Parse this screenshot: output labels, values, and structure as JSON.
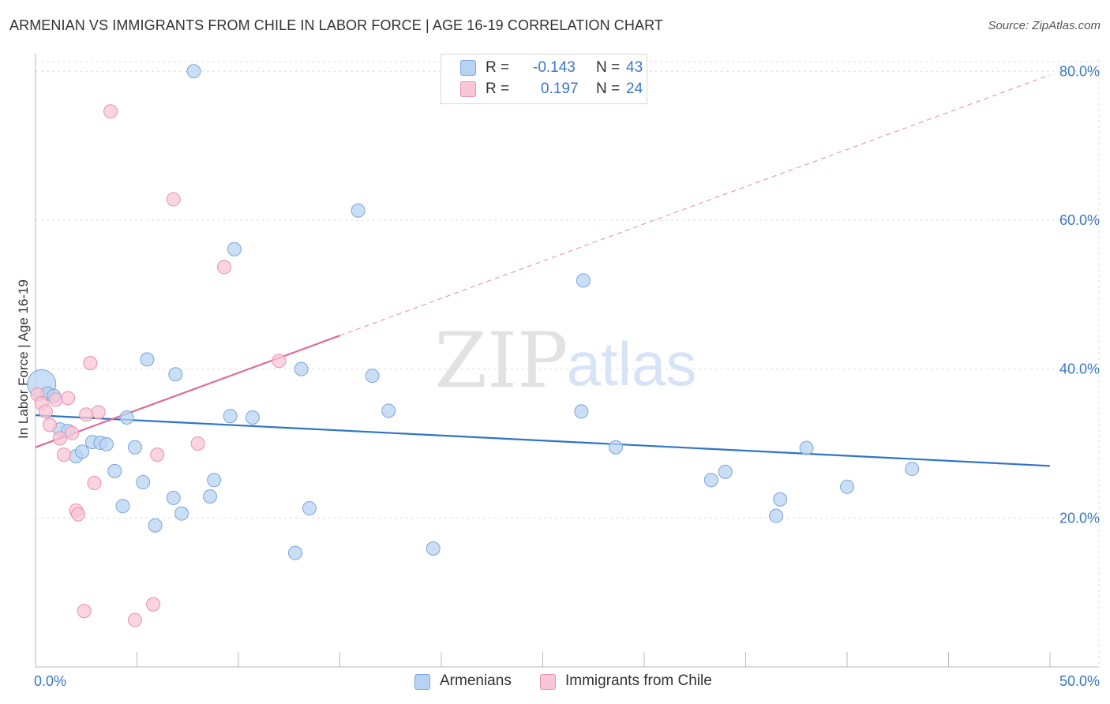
{
  "title": "ARMENIAN VS IMMIGRANTS FROM CHILE IN LABOR FORCE | AGE 16-19 CORRELATION CHART",
  "source": "Source: ZipAtlas.com",
  "watermark": {
    "zip": "ZIP",
    "atlas": "atlas"
  },
  "colors": {
    "blue_fill": "#b8d3f2",
    "blue_stroke": "#7aa6dc",
    "blue_line": "#2f74c8",
    "pink_fill": "#f8c6d4",
    "pink_stroke": "#e992ad",
    "pink_line": "#e0689a",
    "value_text": "#3b78c4",
    "grid": "#dddddd"
  },
  "legend_top": [
    {
      "swatch": "blue",
      "r_label": "R =",
      "r_value": "-0.143",
      "n_label": "N =",
      "n_value": "43"
    },
    {
      "swatch": "pink",
      "r_label": "R =",
      "r_value": "0.197",
      "n_label": "N =",
      "n_value": "24"
    }
  ],
  "legend_bottom": [
    {
      "swatch": "blue",
      "label": "Armenians"
    },
    {
      "swatch": "pink",
      "label": "Immigrants from Chile"
    }
  ],
  "chart_data": {
    "type": "scatter",
    "title": "ARMENIAN VS IMMIGRANTS FROM CHILE IN LABOR FORCE | AGE 16-19 CORRELATION CHART",
    "xlabel": "",
    "ylabel": "In Labor Force | Age 16-19",
    "xlim": [
      0,
      50
    ],
    "ylim": [
      0,
      83
    ],
    "x_ticks": [
      0,
      5,
      10,
      15,
      20,
      25,
      30,
      35,
      40,
      45,
      50
    ],
    "x_tick_labels": [
      {
        "value": 0,
        "label": "0.0%"
      },
      {
        "value": 50,
        "label": "50.0%"
      }
    ],
    "y_ticks": [
      {
        "value": 20,
        "label": "20.0%"
      },
      {
        "value": 40,
        "label": "40.0%"
      },
      {
        "value": 60,
        "label": "60.0%"
      },
      {
        "value": 80,
        "label": "80.0%"
      }
    ],
    "grid": true,
    "series": [
      {
        "name": "Armenians",
        "color": "blue",
        "points": [
          [
            0.3,
            38.0
          ],
          [
            0.6,
            36.7
          ],
          [
            0.9,
            36.4
          ],
          [
            1.2,
            31.9
          ],
          [
            1.6,
            31.7
          ],
          [
            2.0,
            28.3
          ],
          [
            2.3,
            28.9
          ],
          [
            2.8,
            30.2
          ],
          [
            3.2,
            30.1
          ],
          [
            3.5,
            29.9
          ],
          [
            3.9,
            26.3
          ],
          [
            4.3,
            21.6
          ],
          [
            4.5,
            33.5
          ],
          [
            4.9,
            29.5
          ],
          [
            5.3,
            24.8
          ],
          [
            5.5,
            41.3
          ],
          [
            5.9,
            19.0
          ],
          [
            6.8,
            22.7
          ],
          [
            6.9,
            39.3
          ],
          [
            7.2,
            20.6
          ],
          [
            7.8,
            80.0
          ],
          [
            8.6,
            22.9
          ],
          [
            8.8,
            25.1
          ],
          [
            9.6,
            33.7
          ],
          [
            9.8,
            56.1
          ],
          [
            10.7,
            33.5
          ],
          [
            12.8,
            15.3
          ],
          [
            13.1,
            40.0
          ],
          [
            13.5,
            21.3
          ],
          [
            15.9,
            61.3
          ],
          [
            16.6,
            39.1
          ],
          [
            17.4,
            34.4
          ],
          [
            19.6,
            15.9
          ],
          [
            26.9,
            34.3
          ],
          [
            27.0,
            51.9
          ],
          [
            28.6,
            29.5
          ],
          [
            33.3,
            25.1
          ],
          [
            34.0,
            26.2
          ],
          [
            36.5,
            20.3
          ],
          [
            36.7,
            22.5
          ],
          [
            38.0,
            29.4
          ],
          [
            40.0,
            24.2
          ],
          [
            43.2,
            26.6
          ]
        ]
      },
      {
        "name": "Immigrants from Chile",
        "color": "pink",
        "points": [
          [
            0.1,
            36.6
          ],
          [
            0.3,
            35.4
          ],
          [
            0.5,
            34.3
          ],
          [
            0.7,
            32.5
          ],
          [
            1.0,
            35.9
          ],
          [
            1.2,
            30.7
          ],
          [
            1.4,
            28.5
          ],
          [
            1.6,
            36.1
          ],
          [
            1.8,
            31.4
          ],
          [
            2.0,
            21.0
          ],
          [
            2.1,
            20.5
          ],
          [
            2.4,
            7.5
          ],
          [
            2.5,
            33.9
          ],
          [
            2.7,
            40.8
          ],
          [
            2.9,
            24.7
          ],
          [
            3.1,
            34.2
          ],
          [
            3.7,
            74.6
          ],
          [
            4.9,
            6.3
          ],
          [
            5.8,
            8.4
          ],
          [
            6.0,
            28.5
          ],
          [
            6.8,
            62.8
          ],
          [
            8.0,
            30.0
          ],
          [
            9.3,
            53.7
          ],
          [
            12.0,
            41.1
          ]
        ]
      }
    ],
    "trendlines": [
      {
        "series": "Armenians",
        "x": [
          0,
          50
        ],
        "y": [
          33.8,
          27.0
        ],
        "style": "solid"
      },
      {
        "series": "Immigrants from Chile",
        "x": [
          0,
          15
        ],
        "y": [
          29.5,
          44.5
        ],
        "style": "solid"
      },
      {
        "series": "Immigrants from Chile",
        "x": [
          15,
          50
        ],
        "y": [
          44.5,
          79.5
        ],
        "style": "dashed"
      }
    ]
  }
}
